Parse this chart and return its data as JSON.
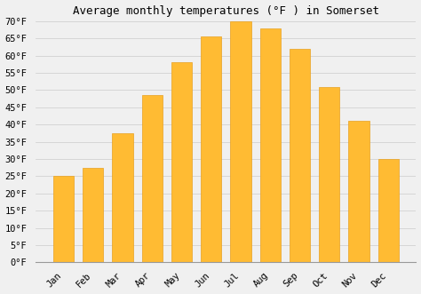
{
  "title": "Average monthly temperatures (°F ) in Somerset",
  "months": [
    "Jan",
    "Feb",
    "Mar",
    "Apr",
    "May",
    "Jun",
    "Jul",
    "Aug",
    "Sep",
    "Oct",
    "Nov",
    "Dec"
  ],
  "values": [
    25,
    27.5,
    37.5,
    48.5,
    58,
    65.5,
    70,
    68,
    62,
    51,
    41,
    30
  ],
  "bar_color": "#FFBB33",
  "bar_edge_color": "#E8A020",
  "ylim": [
    0,
    70
  ],
  "yticks": [
    0,
    5,
    10,
    15,
    20,
    25,
    30,
    35,
    40,
    45,
    50,
    55,
    60,
    65,
    70
  ],
  "grid_color": "#cccccc",
  "background_color": "#f0f0f0",
  "title_fontsize": 9,
  "tick_fontsize": 7.5
}
